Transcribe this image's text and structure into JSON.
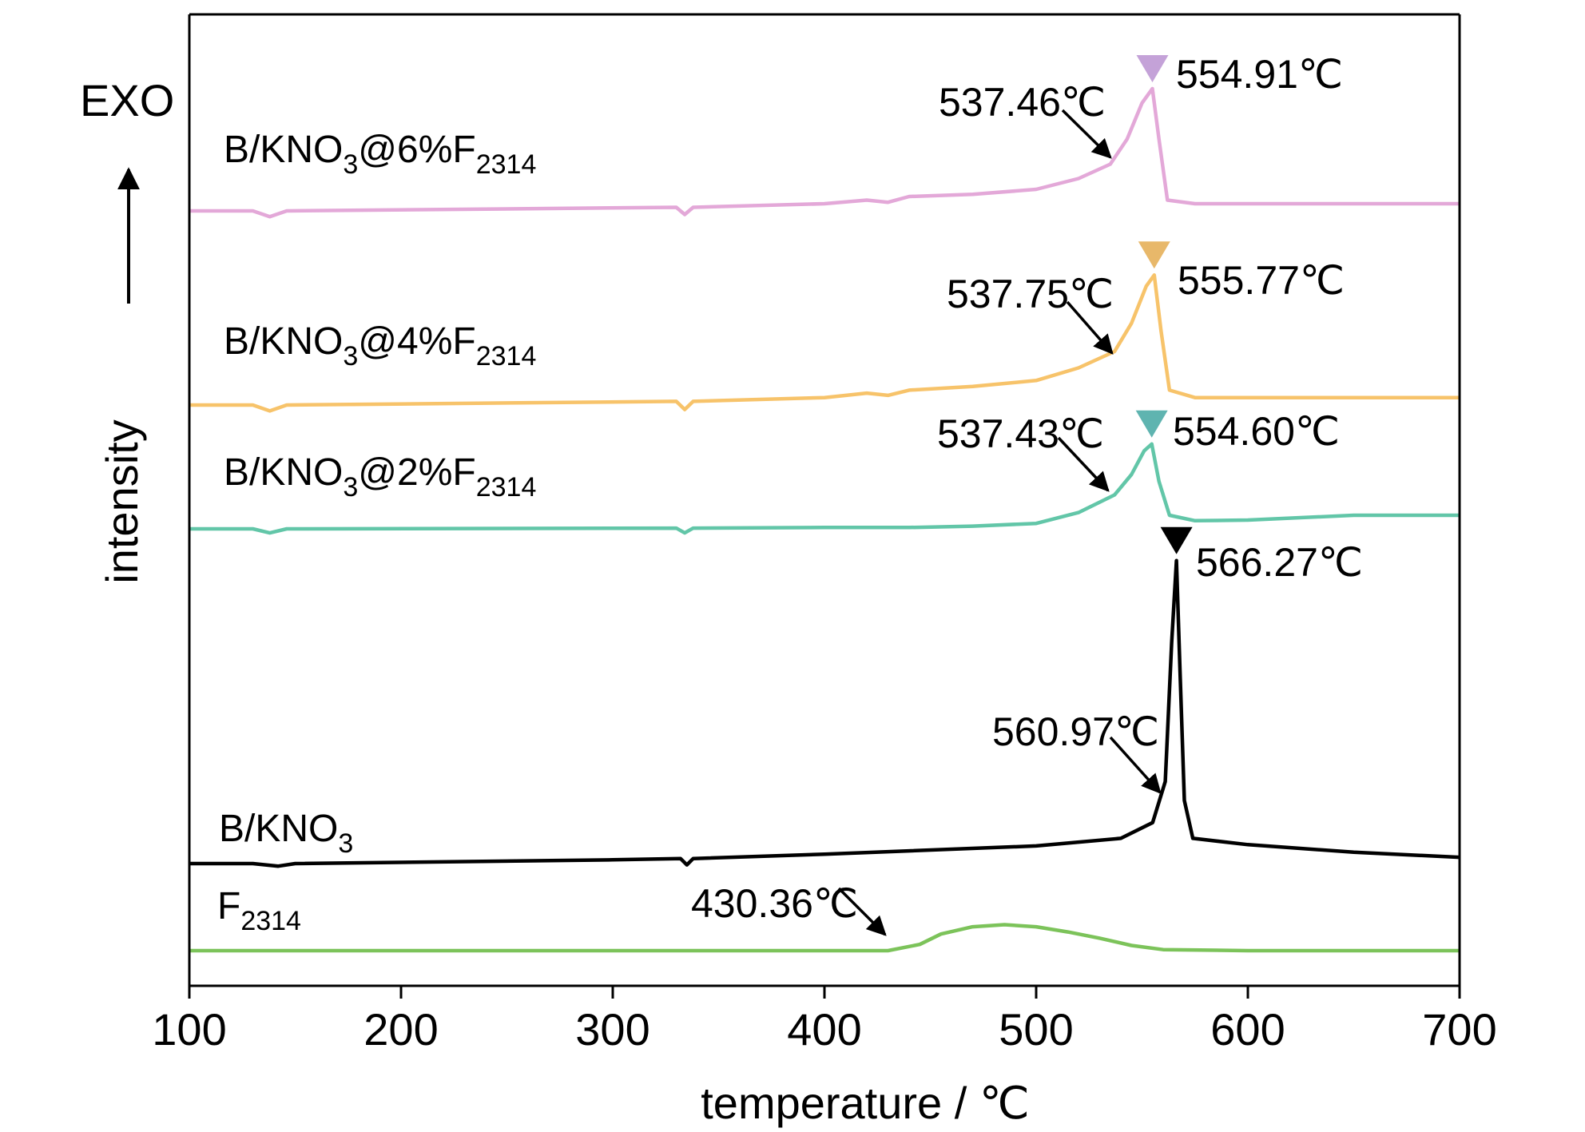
{
  "chart_data": {
    "type": "line",
    "xlabel": "temperature / ℃",
    "ylabel": "intensity",
    "exo_label": "EXO",
    "xlim": [
      100,
      700
    ],
    "xticks": [
      "100",
      "200",
      "300",
      "400",
      "500",
      "600",
      "700"
    ],
    "grid": false,
    "series": [
      {
        "name": "B/KNO3@6%F2314",
        "label_main": "B/KNO",
        "label_parts": [
          [
            "B/KNO",
            0
          ],
          [
            "3",
            1
          ],
          [
            "@6%F",
            0
          ],
          [
            "2314",
            1
          ]
        ],
        "color": "#e3a8d8",
        "marker_color": "#c4a2d8",
        "baseline": 0.0,
        "points": [
          [
            100,
            0.0
          ],
          [
            130,
            0.0
          ],
          [
            138,
            -0.8
          ],
          [
            146,
            0.0
          ],
          [
            330,
            0.5
          ],
          [
            334,
            -0.5
          ],
          [
            338,
            0.5
          ],
          [
            400,
            1.0
          ],
          [
            420,
            1.5
          ],
          [
            430,
            1.2
          ],
          [
            440,
            2.0
          ],
          [
            470,
            2.3
          ],
          [
            500,
            3.0
          ],
          [
            520,
            4.5
          ],
          [
            535,
            6.5
          ],
          [
            543,
            10.0
          ],
          [
            550,
            15.0
          ],
          [
            554.91,
            17.0
          ],
          [
            558,
            10.0
          ],
          [
            562,
            1.5
          ],
          [
            575,
            1.0
          ],
          [
            700,
            1.0
          ]
        ],
        "annotations": [
          {
            "text": "537.46℃",
            "kind": "arrow",
            "x": 537.46
          },
          {
            "text": "554.91℃",
            "kind": "peak",
            "x": 554.91
          }
        ]
      },
      {
        "name": "B/KNO3@4%F2314",
        "label_parts": [
          [
            "B/KNO",
            0
          ],
          [
            "3",
            1
          ],
          [
            "@4%F",
            0
          ],
          [
            "2314",
            1
          ]
        ],
        "color": "#f7c36a",
        "marker_color": "#e8b86a",
        "points": [
          [
            100,
            0.0
          ],
          [
            130,
            0.0
          ],
          [
            138,
            -0.8
          ],
          [
            146,
            0.0
          ],
          [
            330,
            0.5
          ],
          [
            334,
            -0.6
          ],
          [
            338,
            0.5
          ],
          [
            400,
            1.0
          ],
          [
            420,
            1.6
          ],
          [
            430,
            1.3
          ],
          [
            440,
            2.0
          ],
          [
            470,
            2.5
          ],
          [
            500,
            3.3
          ],
          [
            520,
            5.0
          ],
          [
            537,
            7.2
          ],
          [
            545,
            11.0
          ],
          [
            552,
            16.0
          ],
          [
            555.77,
            17.5
          ],
          [
            559,
            10.0
          ],
          [
            563,
            2.0
          ],
          [
            575,
            1.0
          ],
          [
            700,
            1.0
          ]
        ],
        "annotations": [
          {
            "text": "537.75℃",
            "kind": "arrow",
            "x": 537.75
          },
          {
            "text": "555.77℃",
            "kind": "peak",
            "x": 555.77
          }
        ]
      },
      {
        "name": "B/KNO3@2%F2314",
        "label_parts": [
          [
            "B/KNO",
            0
          ],
          [
            "3",
            1
          ],
          [
            "@2%F",
            0
          ],
          [
            "2314",
            1
          ]
        ],
        "color": "#62c6a8",
        "marker_color": "#5fb4b0",
        "points": [
          [
            100,
            0.0
          ],
          [
            130,
            0.0
          ],
          [
            138,
            -0.6
          ],
          [
            146,
            0.0
          ],
          [
            330,
            0.1
          ],
          [
            334,
            -0.6
          ],
          [
            338,
            0.1
          ],
          [
            400,
            0.2
          ],
          [
            440,
            0.2
          ],
          [
            470,
            0.4
          ],
          [
            500,
            0.8
          ],
          [
            520,
            2.4
          ],
          [
            537,
            5.0
          ],
          [
            545,
            8.0
          ],
          [
            551,
            11.5
          ],
          [
            554.6,
            12.5
          ],
          [
            558,
            7.0
          ],
          [
            563,
            2.0
          ],
          [
            575,
            1.2
          ],
          [
            600,
            1.3
          ],
          [
            650,
            2.0
          ],
          [
            700,
            2.0
          ]
        ],
        "annotations": [
          {
            "text": "537.43℃",
            "kind": "arrow",
            "x": 537.43
          },
          {
            "text": "554.60℃",
            "kind": "peak",
            "x": 554.6
          }
        ]
      },
      {
        "name": "B/KNO3",
        "label_parts": [
          [
            "B/KNO",
            0
          ],
          [
            "3",
            1
          ]
        ],
        "color": "#000000",
        "marker_color": "#000000",
        "points": [
          [
            100,
            0.0
          ],
          [
            130,
            0.0
          ],
          [
            142,
            -0.4
          ],
          [
            150,
            0.0
          ],
          [
            300,
            0.6
          ],
          [
            332,
            0.8
          ],
          [
            335,
            -0.2
          ],
          [
            338,
            0.8
          ],
          [
            400,
            1.5
          ],
          [
            500,
            2.8
          ],
          [
            540,
            4.0
          ],
          [
            555,
            6.5
          ],
          [
            561,
            13.0
          ],
          [
            564,
            35.0
          ],
          [
            566.27,
            48.0
          ],
          [
            568,
            30.0
          ],
          [
            570,
            10.0
          ],
          [
            574,
            4.0
          ],
          [
            600,
            3.0
          ],
          [
            650,
            1.8
          ],
          [
            700,
            1.0
          ]
        ],
        "annotations": [
          {
            "text": "560.97℃",
            "kind": "arrow",
            "x": 560.97
          },
          {
            "text": "566.27℃",
            "kind": "peak",
            "x": 566.27
          }
        ]
      },
      {
        "name": "F2314",
        "label_parts": [
          [
            "F",
            0
          ],
          [
            "2314",
            1
          ]
        ],
        "color": "#7cc35a",
        "marker_color": "#7cc35a",
        "points": [
          [
            100,
            0.0
          ],
          [
            300,
            0.0
          ],
          [
            400,
            0.0
          ],
          [
            430,
            0.0
          ],
          [
            445,
            0.6
          ],
          [
            455,
            1.6
          ],
          [
            470,
            2.3
          ],
          [
            485,
            2.5
          ],
          [
            500,
            2.3
          ],
          [
            515,
            1.8
          ],
          [
            530,
            1.2
          ],
          [
            545,
            0.5
          ],
          [
            560,
            0.1
          ],
          [
            600,
            0.0
          ],
          [
            700,
            0.0
          ]
        ],
        "annotations": [
          {
            "text": "430.36℃",
            "kind": "arrow",
            "x": 430.36
          }
        ]
      }
    ]
  }
}
